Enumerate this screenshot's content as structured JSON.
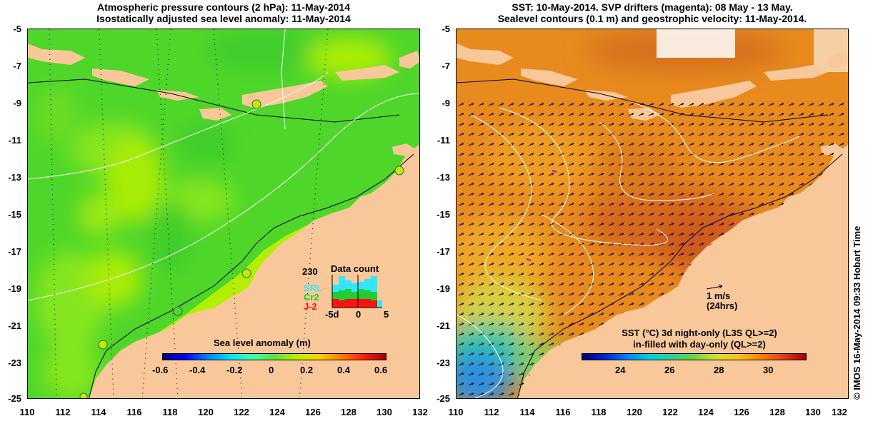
{
  "left_panel": {
    "title_line1": "Atmospheric pressure contours (2 hPa): 11-May-2014",
    "title_line2": "Isostatically adjusted sea level anomaly: 11-May-2014",
    "colorbar_label": "Sea level anomaly (m)",
    "colorbar_ticks": [
      "-0.6",
      "-0.4",
      "-0.2",
      "0",
      "0.2",
      "0.4",
      "0.6"
    ],
    "inset": {
      "title": "Data count",
      "ymax": "230",
      "legend": [
        "SRL",
        "Cr2",
        "J-2"
      ],
      "legend_colors": [
        "#33e5ff",
        "#22cc33",
        "#ff1111"
      ],
      "xticks": [
        "-5d",
        "0",
        "5"
      ]
    }
  },
  "right_panel": {
    "title_line1": "SST: 10-May-2014. SVP drifters (magenta): 08 May - 13 May.",
    "title_line2": "Sealevel contours (0.1 m) and geostrophic velocity: 11-May-2014.",
    "scale_label": "1 m/s",
    "scale_sub": "(24hrs)",
    "colorbar_label_line1": "SST (°C)  3d night-only (L3S QL>=2)",
    "colorbar_label_line2": "in-filled with day-only (QL>=2)",
    "colorbar_ticks": [
      "24",
      "26",
      "28",
      "30"
    ]
  },
  "axes": {
    "y_ticks": [
      "-5",
      "-7",
      "-9",
      "-11",
      "-13",
      "-15",
      "-17",
      "-19",
      "-21",
      "-23",
      "-25"
    ],
    "x_ticks": [
      "110",
      "112",
      "114",
      "116",
      "118",
      "120",
      "122",
      "124",
      "126",
      "128",
      "130",
      "132"
    ]
  },
  "credit": "© IMOS 16-May-2014 09:33 Hobart Time",
  "colors": {
    "land": "#f8c89a",
    "sla_green": "#4fd62a",
    "sla_yellowgreen": "#b8f000",
    "sst_orange": "#e88a1e",
    "sst_deep": "#d0601c",
    "sst_cool": "#2f8fdf"
  }
}
